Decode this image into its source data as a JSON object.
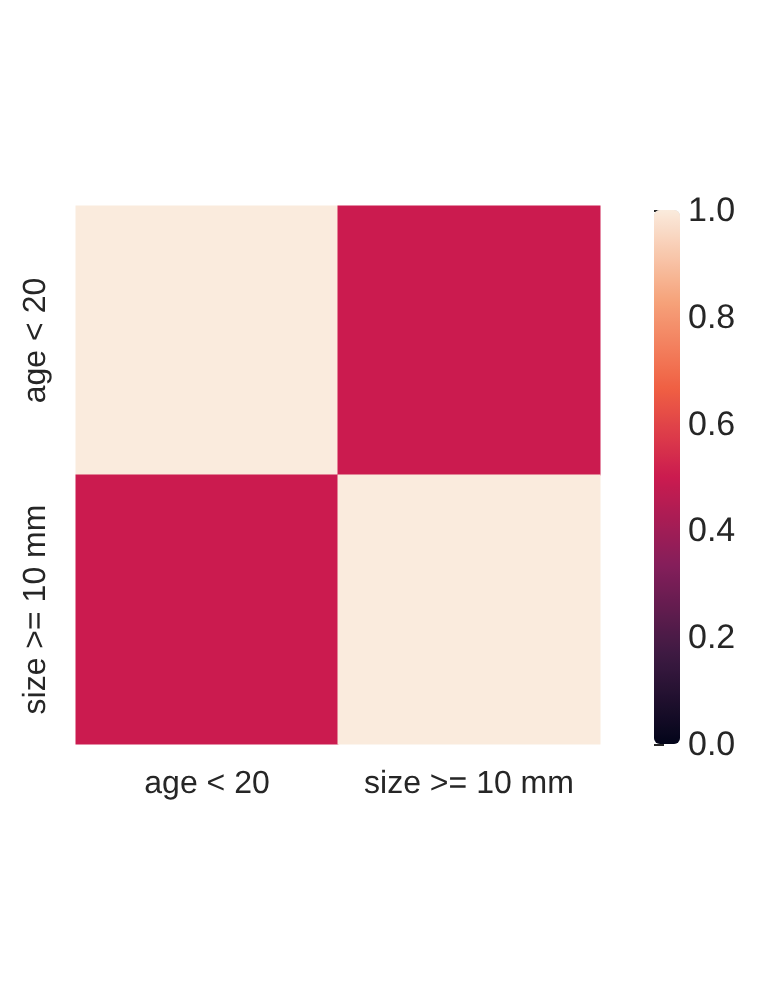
{
  "chart_data": {
    "type": "heatmap",
    "categories": [
      "age < 20",
      "size >= 10 mm"
    ],
    "y_categories": [
      "age < 20",
      "size >= 10 mm"
    ],
    "cells": [
      [
        1.0,
        0.5
      ],
      [
        0.5,
        1.0
      ]
    ],
    "clim": [
      0,
      1
    ],
    "cticks": [
      {
        "value": 0,
        "label": "0.0"
      },
      0.2,
      0.4,
      0.6,
      0.8,
      {
        "value": 1,
        "label": "1.0"
      }
    ]
  }
}
